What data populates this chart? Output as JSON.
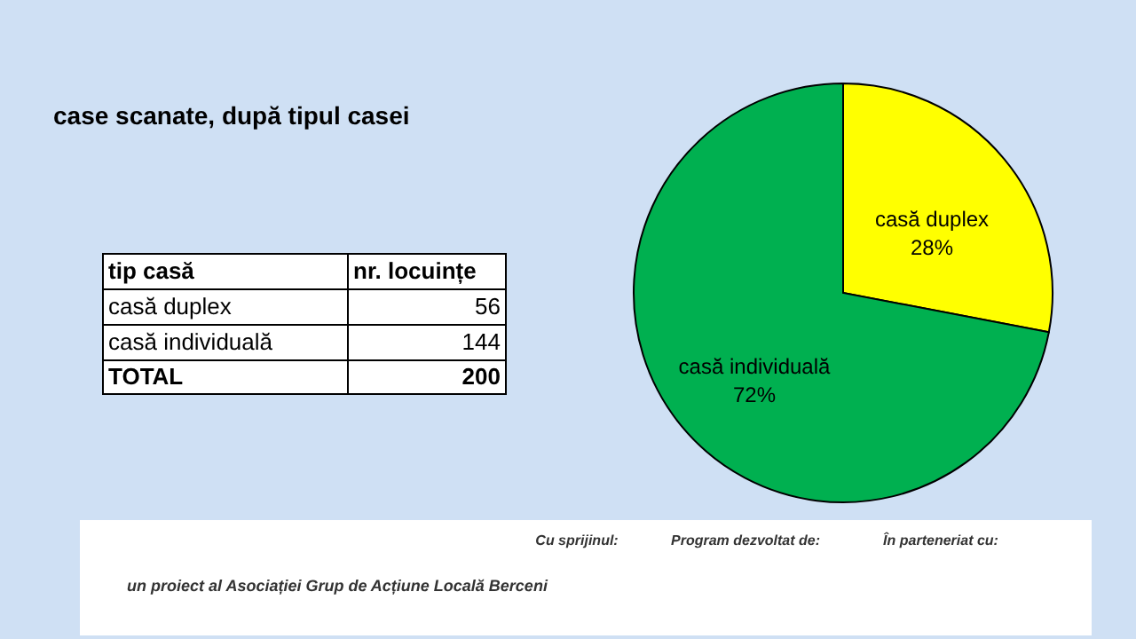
{
  "chart_data": {
    "type": "pie",
    "title": "case scanate, după tipul casei",
    "categories": [
      "casă duplex",
      "casă individuală"
    ],
    "values": [
      28,
      72
    ],
    "colors": [
      "#ffff00",
      "#00b050"
    ],
    "value_labels": [
      "28%",
      "72%"
    ],
    "annotations": [
      "tip casă",
      "nr. locuințe",
      "TOTAL",
      "200",
      "un proiect al Asociației Grup de Acțiune Locală Berceni",
      "Cu sprijinul:",
      "Program dezvoltat de:",
      "În parteneriat cu:",
      "56",
      "144"
    ]
  }
}
